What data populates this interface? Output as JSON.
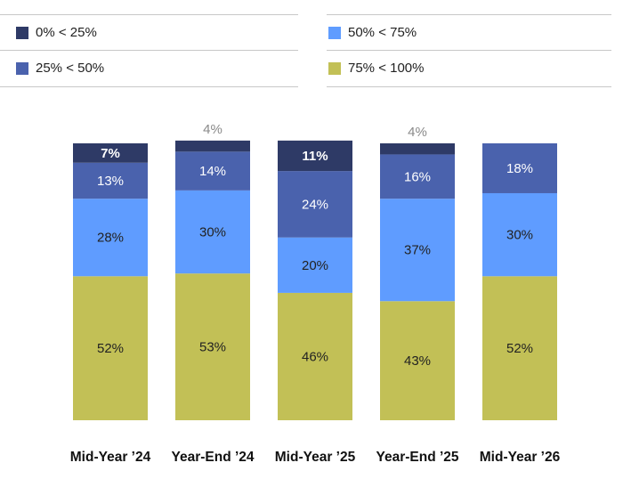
{
  "legend": [
    {
      "label": "0% < 25%",
      "color": "#2e3a66"
    },
    {
      "label": "25% < 50%",
      "color": "#4a62ad"
    },
    {
      "label": "50% < 75%",
      "color": "#5f9cff"
    },
    {
      "label": "75% < 100%",
      "color": "#c2c056"
    }
  ],
  "chart_data": {
    "type": "bar",
    "stacked": true,
    "categories": [
      "Mid-Year ’24",
      "Year-End ’24",
      "Mid-Year ’25",
      "Year-End ’25",
      "Mid-Year ’26"
    ],
    "series": [
      {
        "name": "75% < 100%",
        "color": "#c2c056",
        "values": [
          52,
          53,
          46,
          43,
          52
        ]
      },
      {
        "name": "50% < 75%",
        "color": "#5f9cff",
        "values": [
          28,
          30,
          20,
          37,
          30
        ]
      },
      {
        "name": "25% < 50%",
        "color": "#4a62ad",
        "values": [
          13,
          14,
          24,
          16,
          18
        ]
      },
      {
        "name": "0% < 25%",
        "color": "#2e3a66",
        "values": [
          7,
          4,
          11,
          4,
          0
        ]
      }
    ],
    "labels": [
      [
        "52%",
        "53%",
        "46%",
        "43%",
        "52%"
      ],
      [
        "28%",
        "30%",
        "20%",
        "37%",
        "30%"
      ],
      [
        "13%",
        "14%",
        "24%",
        "16%",
        "18%"
      ],
      [
        "7%",
        "4%",
        "11%",
        "4%",
        ""
      ]
    ],
    "ylim": [
      0,
      100
    ],
    "legend_position": "top",
    "grid": false
  }
}
